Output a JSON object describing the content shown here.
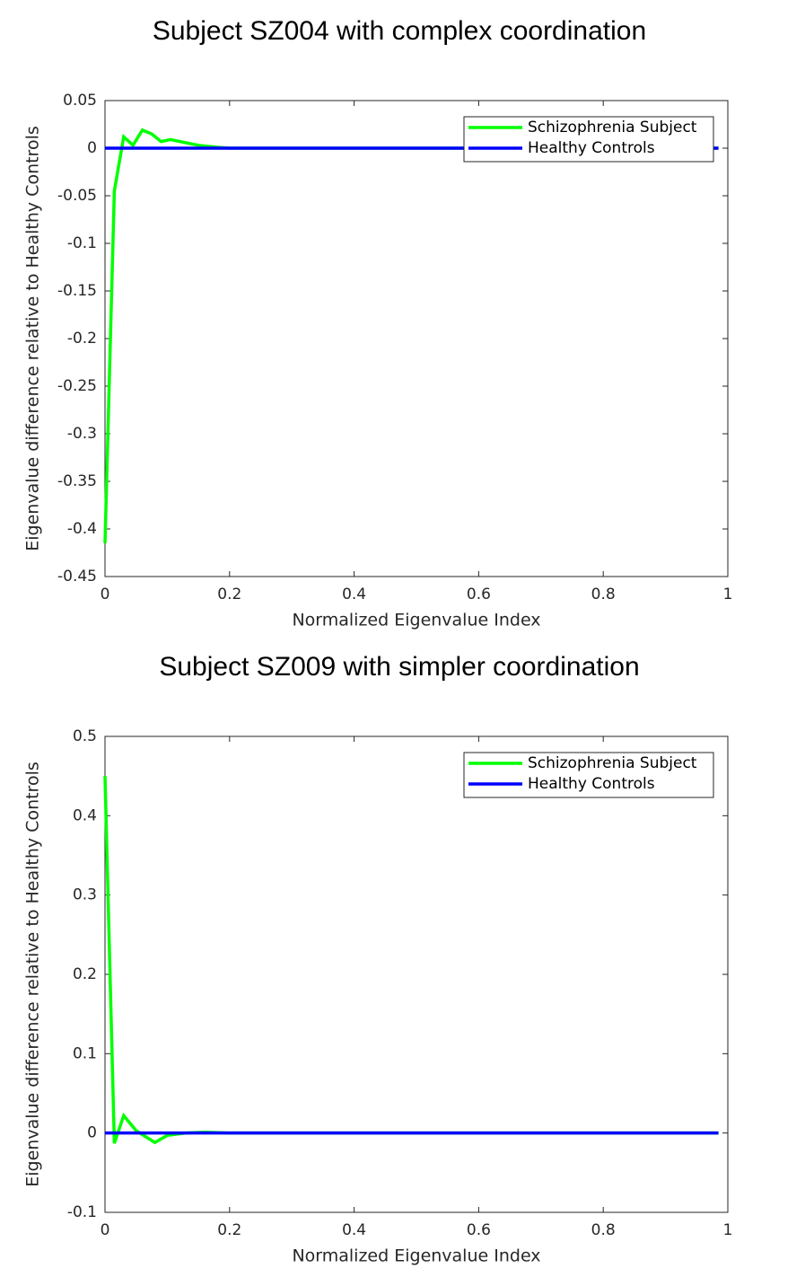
{
  "chart_data": [
    {
      "type": "line",
      "title": "Subject SZ004 with complex coordination",
      "x_label": "Normalized Eigenvalue Index",
      "y_label": "Eigenvalue difference relative to Healthy Controls",
      "xlim": [
        0,
        1
      ],
      "xticks": [
        0,
        0.2,
        0.4,
        0.6,
        0.8,
        1
      ],
      "ylim": [
        -0.45,
        0.05
      ],
      "yticks": [
        0.05,
        0,
        -0.05,
        -0.1,
        -0.15,
        -0.2,
        -0.25,
        -0.3,
        -0.35,
        -0.4,
        -0.45
      ],
      "grid": false,
      "legend": "northeast",
      "series": [
        {
          "name": "Schizophrenia Subject",
          "color": "#00ff00",
          "x": [
            0,
            0.015,
            0.03,
            0.045,
            0.06,
            0.075,
            0.09,
            0.105,
            0.12,
            0.15,
            0.18,
            0.2,
            0.985
          ],
          "values": [
            -0.415,
            -0.045,
            0.012,
            0.003,
            0.019,
            0.015,
            0.007,
            0.009,
            0.007,
            0.003,
            0.001,
            0,
            0
          ]
        },
        {
          "name": "Healthy Controls",
          "color": "#0000ff",
          "x": [
            0,
            0.985
          ],
          "values": [
            0,
            0
          ]
        }
      ]
    },
    {
      "type": "line",
      "title": "Subject SZ009 with simpler coordination",
      "x_label": "Normalized Eigenvalue Index",
      "y_label": "Eigenvalue difference relative to Healthy Controls",
      "xlim": [
        0,
        1
      ],
      "xticks": [
        0,
        0.2,
        0.4,
        0.6,
        0.8,
        1
      ],
      "ylim": [
        -0.1,
        0.5
      ],
      "yticks": [
        0.5,
        0.4,
        0.3,
        0.2,
        0.1,
        0,
        -0.1
      ],
      "grid": false,
      "legend": "northeast",
      "series": [
        {
          "name": "Schizophrenia Subject",
          "color": "#00ff00",
          "x": [
            0,
            0.015,
            0.03,
            0.05,
            0.08,
            0.1,
            0.13,
            0.16,
            0.2,
            0.985
          ],
          "values": [
            0.45,
            -0.013,
            0.022,
            0.003,
            -0.012,
            -0.003,
            0,
            0.001,
            0,
            0
          ]
        },
        {
          "name": "Healthy Controls",
          "color": "#0000ff",
          "x": [
            0,
            0.985
          ],
          "values": [
            0,
            0
          ]
        }
      ]
    }
  ]
}
